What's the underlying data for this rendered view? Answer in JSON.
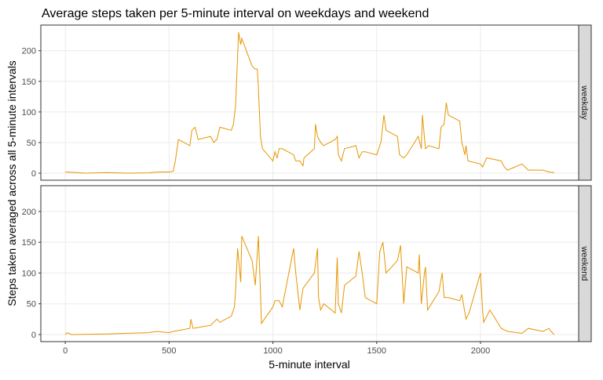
{
  "chart_data": {
    "type": "line",
    "title": "Average steps taken per 5-minute interval on weekdays and weekend",
    "x_label": "5-minute interval",
    "y_label": "Steps taken averaged across all 5-minute intervals",
    "xlim": [
      -117.75,
      2472.75
    ],
    "xticks": [
      0,
      500,
      1000,
      1500,
      2000
    ],
    "ylim": [
      -11.5,
      241.9
    ],
    "yticks": [
      0,
      50,
      100,
      150,
      200
    ],
    "grid": true,
    "series": [
      {
        "name": "weekday",
        "color": "#e69500",
        "x": [
          0,
          100,
          200,
          300,
          400,
          450,
          500,
          520,
          530,
          545,
          600,
          610,
          625,
          640,
          700,
          715,
          730,
          745,
          800,
          810,
          820,
          830,
          835,
          845,
          850,
          900,
          915,
          925,
          930,
          940,
          950,
          1000,
          1010,
          1020,
          1030,
          1045,
          1100,
          1110,
          1130,
          1145,
          1150,
          1200,
          1205,
          1215,
          1230,
          1245,
          1300,
          1310,
          1315,
          1330,
          1345,
          1400,
          1415,
          1430,
          1445,
          1500,
          1520,
          1535,
          1545,
          1600,
          1610,
          1630,
          1645,
          1700,
          1715,
          1720,
          1735,
          1750,
          1800,
          1810,
          1825,
          1835,
          1845,
          1900,
          1910,
          1925,
          1930,
          1940,
          2000,
          2010,
          2030,
          2100,
          2115,
          2130,
          2200,
          2230,
          2300,
          2330,
          2355
        ],
        "values": [
          2,
          0,
          1,
          0,
          0.5,
          2,
          2,
          3,
          20,
          55,
          45,
          70,
          75,
          55,
          60,
          50,
          55,
          75,
          70,
          80,
          110,
          190,
          230,
          210,
          220,
          175,
          170,
          170,
          140,
          60,
          40,
          20,
          35,
          25,
          40,
          40,
          30,
          20,
          20,
          12,
          25,
          40,
          80,
          60,
          50,
          45,
          55,
          60,
          30,
          20,
          40,
          45,
          25,
          35,
          35,
          30,
          50,
          95,
          70,
          60,
          30,
          25,
          30,
          60,
          40,
          95,
          40,
          45,
          40,
          75,
          80,
          115,
          95,
          85,
          50,
          30,
          45,
          20,
          15,
          10,
          25,
          20,
          10,
          5,
          15,
          5,
          5,
          2,
          1
        ]
      },
      {
        "name": "weekend",
        "color": "#e69500",
        "x": [
          0,
          10,
          30,
          200,
          300,
          400,
          440,
          500,
          520,
          600,
          605,
          615,
          700,
          730,
          745,
          800,
          815,
          820,
          830,
          845,
          850,
          900,
          915,
          930,
          940,
          945,
          1000,
          1010,
          1030,
          1045,
          1100,
          1110,
          1130,
          1145,
          1200,
          1215,
          1220,
          1230,
          1245,
          1300,
          1310,
          1315,
          1330,
          1345,
          1400,
          1415,
          1430,
          1445,
          1500,
          1515,
          1530,
          1545,
          1600,
          1615,
          1630,
          1645,
          1700,
          1705,
          1715,
          1730,
          1735,
          1745,
          1800,
          1815,
          1825,
          1845,
          1900,
          1910,
          1930,
          1945,
          2000,
          2010,
          2015,
          2045,
          2100,
          2130,
          2200,
          2230,
          2300,
          2330,
          2340,
          2355
        ],
        "values": [
          0,
          3,
          0,
          1,
          2,
          3,
          5,
          3,
          5,
          10,
          25,
          10,
          15,
          25,
          20,
          30,
          45,
          70,
          140,
          85,
          160,
          120,
          80,
          160,
          70,
          18,
          45,
          55,
          55,
          45,
          140,
          100,
          40,
          75,
          100,
          140,
          60,
          40,
          50,
          35,
          125,
          50,
          35,
          80,
          95,
          135,
          100,
          60,
          50,
          135,
          150,
          100,
          120,
          145,
          50,
          110,
          100,
          130,
          50,
          100,
          110,
          40,
          70,
          100,
          60,
          60,
          55,
          65,
          25,
          35,
          100,
          40,
          20,
          40,
          10,
          5,
          2,
          10,
          5,
          10,
          5,
          0
        ]
      }
    ]
  }
}
